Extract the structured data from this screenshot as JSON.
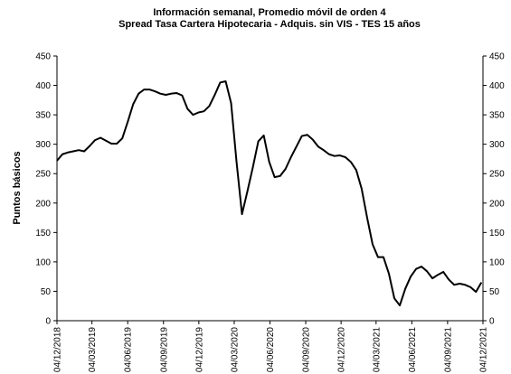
{
  "chart_data": {
    "type": "line",
    "title": "Información semanal, Promedio móvil de orden 4",
    "subtitle": "Spread Tasa Cartera Hipotecaria - Adquis. sin VIS -  TES 15 años",
    "y_label": "Puntos básicos",
    "x": [
      "04/12/2018",
      "18/12/2018",
      "01/01/2019",
      "15/01/2019",
      "29/01/2019",
      "12/02/2019",
      "26/02/2019",
      "12/03/2019",
      "26/03/2019",
      "09/04/2019",
      "23/04/2019",
      "07/05/2019",
      "21/05/2019",
      "04/06/2019",
      "18/06/2019",
      "02/07/2019",
      "16/07/2019",
      "30/07/2019",
      "13/08/2019",
      "27/08/2019",
      "10/09/2019",
      "24/09/2019",
      "08/10/2019",
      "22/10/2019",
      "05/11/2019",
      "19/11/2019",
      "03/12/2019",
      "17/12/2019",
      "31/12/2019",
      "14/01/2020",
      "28/01/2020",
      "11/02/2020",
      "25/02/2020",
      "10/03/2020",
      "24/03/2020",
      "07/04/2020",
      "21/04/2020",
      "05/05/2020",
      "19/05/2020",
      "02/06/2020",
      "16/06/2020",
      "30/06/2020",
      "14/07/2020",
      "28/07/2020",
      "11/08/2020",
      "25/08/2020",
      "08/09/2020",
      "22/09/2020",
      "06/10/2020",
      "20/10/2020",
      "03/11/2020",
      "17/11/2020",
      "01/12/2020",
      "15/12/2020",
      "29/12/2020",
      "12/01/2021",
      "26/01/2021",
      "09/02/2021",
      "23/02/2021",
      "09/03/2021",
      "23/03/2021",
      "06/04/2021",
      "20/04/2021",
      "04/05/2021",
      "18/05/2021",
      "01/06/2021",
      "15/06/2021",
      "29/06/2021",
      "13/07/2021",
      "27/07/2021",
      "10/08/2021",
      "24/08/2021",
      "07/09/2021",
      "21/09/2021",
      "05/10/2021",
      "19/10/2021",
      "02/11/2021",
      "16/11/2021",
      "30/11/2021"
    ],
    "series": [
      {
        "name": "Spread",
        "color": "#000000",
        "values": [
          272,
          283,
          286,
          288,
          290,
          288,
          297,
          307,
          311,
          306,
          301,
          301,
          310,
          338,
          368,
          386,
          393,
          393,
          390,
          386,
          384,
          386,
          387,
          383,
          360,
          350,
          354,
          356,
          365,
          384,
          405,
          407,
          370,
          270,
          181,
          220,
          261,
          305,
          315,
          270,
          244,
          246,
          258,
          278,
          296,
          314,
          316,
          308,
          296,
          290,
          283,
          280,
          281,
          278,
          270,
          256,
          224,
          175,
          130,
          108,
          108,
          80,
          38,
          26,
          54,
          75,
          88,
          92,
          84,
          72,
          78,
          83,
          70,
          61,
          63,
          61,
          57,
          49,
          65
        ]
      }
    ],
    "xlim": [
      "04/12/2018",
      "04/12/2021"
    ],
    "xticks": [
      "04/12/2018",
      "04/03/2019",
      "04/06/2019",
      "04/09/2019",
      "04/12/2019",
      "04/03/2020",
      "04/06/2020",
      "04/09/2020",
      "04/12/2020",
      "04/03/2021",
      "04/06/2021",
      "04/09/2021",
      "04/12/2021"
    ],
    "ylim": [
      0,
      450
    ],
    "yticks": [
      0,
      50,
      100,
      150,
      200,
      250,
      300,
      350,
      400,
      450
    ]
  }
}
